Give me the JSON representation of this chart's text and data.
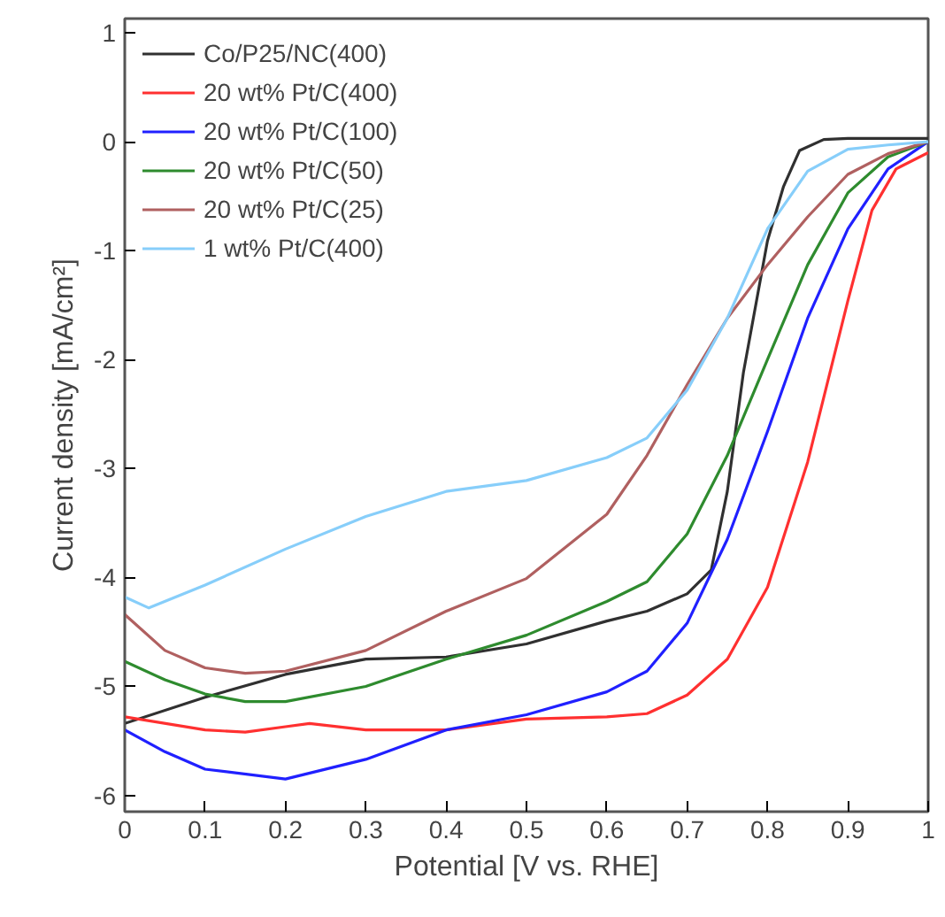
{
  "chart_data": {
    "type": "line",
    "xlabel": "Potential [V vs. RHE]",
    "ylabel": "Current density [mA/cm²]",
    "xlim": [
      0,
      1
    ],
    "ylim": [
      -6.15,
      1.13
    ],
    "xticks": [
      0,
      0.1,
      0.2,
      0.3,
      0.4,
      0.5,
      0.6,
      0.7,
      0.8,
      0.9,
      1
    ],
    "yticks": [
      -6,
      -5,
      -4,
      -3,
      -2,
      -1,
      0,
      1
    ],
    "grid": false,
    "legend": "top left",
    "line_style": "solid",
    "marker": "none",
    "series": [
      {
        "name": "Co/P25/NC(400)",
        "color": "#303030",
        "x": [
          0,
          0.1,
          0.2,
          0.3,
          0.4,
          0.5,
          0.6,
          0.65,
          0.7,
          0.73,
          0.75,
          0.77,
          0.8,
          0.82,
          0.84,
          0.87,
          0.9,
          1
        ],
        "values": [
          -5.34,
          -5.1,
          -4.89,
          -4.75,
          -4.73,
          -4.61,
          -4.4,
          -4.31,
          -4.15,
          -3.93,
          -3.21,
          -2.12,
          -0.91,
          -0.41,
          -0.08,
          0.02,
          0.03,
          0.03
        ]
      },
      {
        "name": "20 wt% Pt/C(400)",
        "color": "#ff3030",
        "x": [
          0,
          0.1,
          0.15,
          0.2,
          0.23,
          0.3,
          0.4,
          0.5,
          0.6,
          0.65,
          0.7,
          0.75,
          0.8,
          0.85,
          0.9,
          0.93,
          0.96,
          1
        ],
        "values": [
          -5.28,
          -5.4,
          -5.42,
          -5.37,
          -5.34,
          -5.4,
          -5.4,
          -5.3,
          -5.28,
          -5.25,
          -5.08,
          -4.75,
          -4.09,
          -2.94,
          -1.46,
          -0.63,
          -0.25,
          -0.1
        ]
      },
      {
        "name": "20 wt% Pt/C(100)",
        "color": "#2020ff",
        "x": [
          0,
          0.05,
          0.1,
          0.2,
          0.3,
          0.4,
          0.5,
          0.6,
          0.65,
          0.7,
          0.75,
          0.8,
          0.85,
          0.9,
          0.95,
          1
        ],
        "values": [
          -5.4,
          -5.6,
          -5.76,
          -5.85,
          -5.67,
          -5.4,
          -5.26,
          -5.05,
          -4.86,
          -4.42,
          -3.65,
          -2.66,
          -1.62,
          -0.8,
          -0.25,
          0
        ]
      },
      {
        "name": "20 wt% Pt/C(50)",
        "color": "#2e8b2e",
        "x": [
          0,
          0.05,
          0.1,
          0.15,
          0.2,
          0.3,
          0.4,
          0.5,
          0.6,
          0.65,
          0.7,
          0.75,
          0.8,
          0.85,
          0.9,
          0.95,
          1
        ],
        "values": [
          -4.77,
          -4.94,
          -5.07,
          -5.14,
          -5.14,
          -5.0,
          -4.75,
          -4.53,
          -4.22,
          -4.04,
          -3.6,
          -2.88,
          -2.0,
          -1.13,
          -0.47,
          -0.14,
          0
        ]
      },
      {
        "name": "20 wt% Pt/C(25)",
        "color": "#b06060",
        "x": [
          0,
          0.05,
          0.1,
          0.15,
          0.2,
          0.3,
          0.4,
          0.5,
          0.6,
          0.65,
          0.7,
          0.75,
          0.8,
          0.85,
          0.9,
          0.95,
          1
        ],
        "values": [
          -4.34,
          -4.67,
          -4.83,
          -4.88,
          -4.86,
          -4.67,
          -4.31,
          -4.01,
          -3.42,
          -2.88,
          -2.23,
          -1.62,
          -1.13,
          -0.69,
          -0.3,
          -0.11,
          0
        ]
      },
      {
        "name": "1 wt% Pt/C(400)",
        "color": "#87cefa",
        "x": [
          0,
          0.03,
          0.1,
          0.2,
          0.3,
          0.4,
          0.5,
          0.6,
          0.65,
          0.7,
          0.75,
          0.8,
          0.85,
          0.9,
          0.95,
          1
        ],
        "values": [
          -4.18,
          -4.28,
          -4.07,
          -3.74,
          -3.44,
          -3.21,
          -3.11,
          -2.9,
          -2.72,
          -2.28,
          -1.62,
          -0.8,
          -0.27,
          -0.07,
          -0.03,
          0
        ]
      }
    ]
  }
}
